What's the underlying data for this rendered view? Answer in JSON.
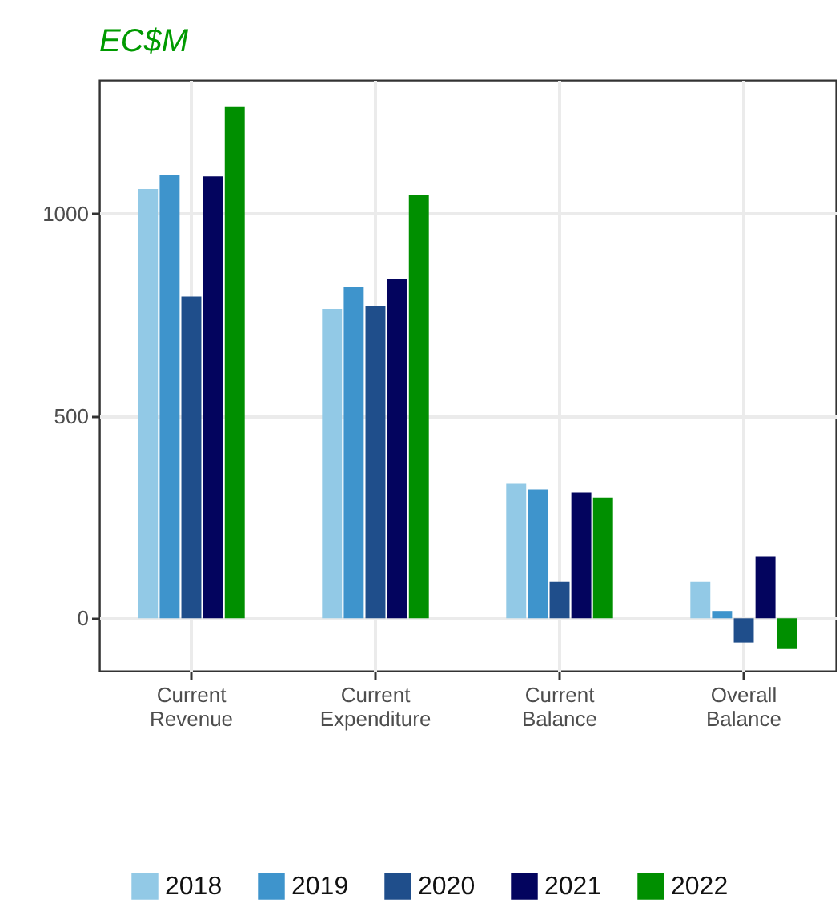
{
  "chart_data": {
    "type": "bar",
    "title": "EC$M",
    "categories": [
      "Current Revenue",
      "Current Expenditure",
      "Current Balance",
      "Overall Balance"
    ],
    "series": [
      {
        "name": "2018",
        "color": "#92c9e6",
        "values": [
          1061,
          764,
          334,
          90
        ]
      },
      {
        "name": "2019",
        "color": "#3e94cc",
        "values": [
          1096,
          819,
          318,
          18
        ]
      },
      {
        "name": "2020",
        "color": "#1f4e8b",
        "values": [
          795,
          772,
          90,
          -60
        ]
      },
      {
        "name": "2021",
        "color": "#03045e",
        "values": [
          1092,
          839,
          310,
          152
        ]
      },
      {
        "name": "2022",
        "color": "#008f00",
        "values": [
          1263,
          1045,
          298,
          -76
        ]
      }
    ],
    "ylim": [
      -130,
      1330
    ],
    "yticks": [
      0,
      500,
      1000
    ],
    "grid": true,
    "legend": "bottom"
  }
}
